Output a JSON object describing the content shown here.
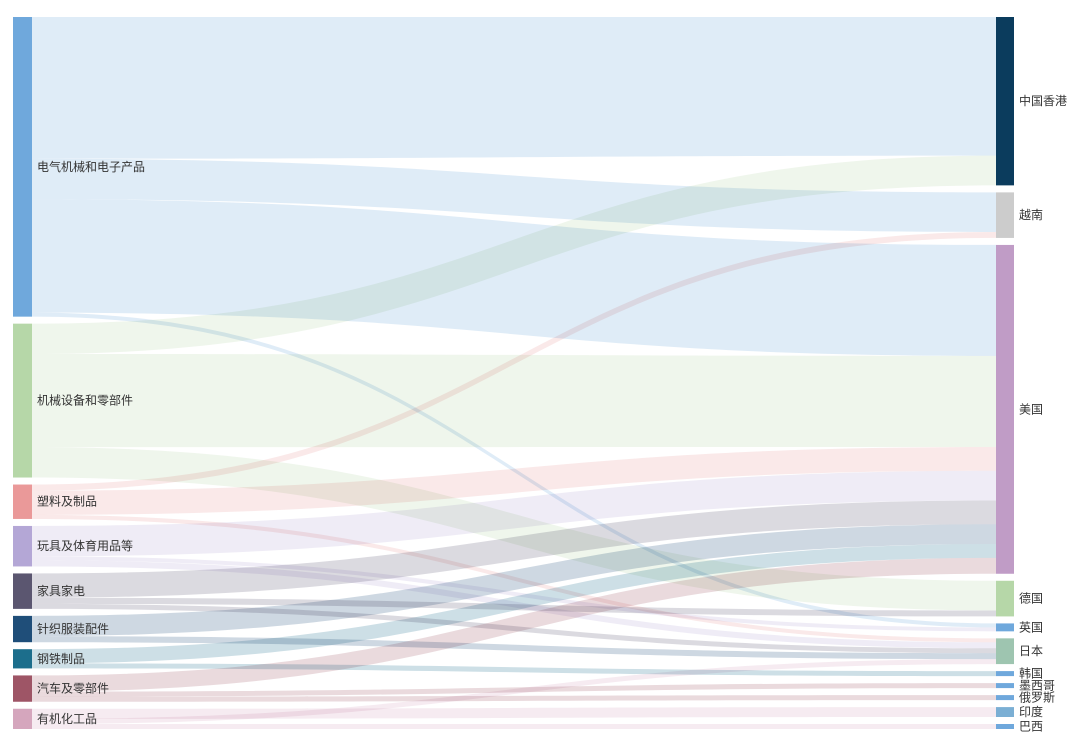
{
  "chart_data": {
    "type": "sankey",
    "sources": [
      {
        "name": "电气机械和电子产品",
        "color": "#6fa8dc"
      },
      {
        "name": "机械设备和零部件",
        "color": "#b6d7a8"
      },
      {
        "name": "塑料及制品",
        "color": "#ea9999"
      },
      {
        "name": "玩具及体育用品等",
        "color": "#b4a7d6"
      },
      {
        "name": "家具家电",
        "color": "#5b5670"
      },
      {
        "name": "针织服装配件",
        "color": "#1f4e79"
      },
      {
        "name": "钢铁制品",
        "color": "#1c6e8c"
      },
      {
        "name": "汽车及零部件",
        "color": "#9e5566"
      },
      {
        "name": "有机化工品",
        "color": "#d5a6bd"
      }
    ],
    "targets": [
      {
        "name": "中国香港",
        "color": "#0b3c5d"
      },
      {
        "name": "越南",
        "color": "#cccccc"
      },
      {
        "name": "美国",
        "color": "#c09cc6"
      },
      {
        "name": "德国",
        "color": "#b6d7a8"
      },
      {
        "name": "英国",
        "color": "#6fa8dc"
      },
      {
        "name": "日本",
        "color": "#9ec5b0"
      },
      {
        "name": "韩国",
        "color": "#6fa8dc"
      },
      {
        "name": "墨西哥",
        "color": "#6fa8dc"
      },
      {
        "name": "俄罗斯",
        "color": "#6fa8dc"
      },
      {
        "name": "印度",
        "color": "#7bafd4"
      },
      {
        "name": "巴西",
        "color": "#6fa8dc"
      }
    ],
    "links": [
      {
        "source": "电气机械和电子产品",
        "target": "中国香港",
        "value": 140
      },
      {
        "source": "电气机械和电子产品",
        "target": "越南",
        "value": 40
      },
      {
        "source": "电气机械和电子产品",
        "target": "美国",
        "value": 112
      },
      {
        "source": "电气机械和电子产品",
        "target": "英国",
        "value": 4
      },
      {
        "source": "机械设备和零部件",
        "target": "中国香港",
        "value": 30
      },
      {
        "source": "机械设备和零部件",
        "target": "美国",
        "value": 92
      },
      {
        "source": "机械设备和零部件",
        "target": "德国",
        "value": 30
      },
      {
        "source": "塑料及制品",
        "target": "越南",
        "value": 6
      },
      {
        "source": "塑料及制品",
        "target": "美国",
        "value": 24
      },
      {
        "source": "塑料及制品",
        "target": "日本",
        "value": 4
      },
      {
        "source": "玩具及体育用品等",
        "target": "美国",
        "value": 30
      },
      {
        "source": "玩具及体育用品等",
        "target": "英国",
        "value": 4
      },
      {
        "source": "玩具及体育用品等",
        "target": "日本",
        "value": 6
      },
      {
        "source": "家具家电",
        "target": "美国",
        "value": 24
      },
      {
        "source": "家具家电",
        "target": "德国",
        "value": 6
      },
      {
        "source": "家具家电",
        "target": "日本",
        "value": 5
      },
      {
        "source": "针织服装配件",
        "target": "美国",
        "value": 20
      },
      {
        "source": "针织服装配件",
        "target": "日本",
        "value": 6
      },
      {
        "source": "钢铁制品",
        "target": "美国",
        "value": 14
      },
      {
        "source": "钢铁制品",
        "target": "韩国",
        "value": 5
      },
      {
        "source": "汽车及零部件",
        "target": "美国",
        "value": 16
      },
      {
        "source": "汽车及零部件",
        "target": "墨西哥",
        "value": 5
      },
      {
        "source": "汽车及零部件",
        "target": "俄罗斯",
        "value": 5
      },
      {
        "source": "有机化工品",
        "target": "印度",
        "value": 10
      },
      {
        "source": "有机化工品",
        "target": "日本",
        "value": 5
      },
      {
        "source": "有机化工品",
        "target": "巴西",
        "value": 5
      }
    ]
  }
}
